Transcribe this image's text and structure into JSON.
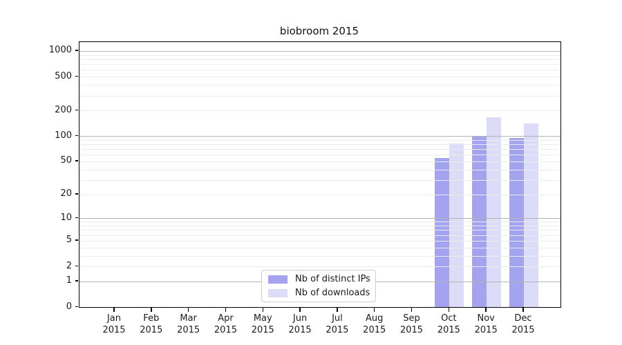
{
  "title": "biobroom 2015",
  "chart_data": {
    "type": "bar",
    "title": "biobroom 2015",
    "categories": [
      "Jan",
      "Feb",
      "Mar",
      "Apr",
      "May",
      "Jun",
      "Jul",
      "Aug",
      "Sep",
      "Oct",
      "Nov",
      "Dec"
    ],
    "category_year": "2015",
    "series": [
      {
        "name": "Nb of distinct IPs",
        "color": "#a3a3f0",
        "values": [
          0,
          0,
          0,
          0,
          0,
          0,
          0,
          0,
          0,
          55,
          101,
          95
        ]
      },
      {
        "name": "Nb of downloads",
        "color": "#dcdcf8",
        "values": [
          0,
          0,
          0,
          0,
          0,
          0,
          0,
          0,
          0,
          81,
          168,
          141
        ]
      }
    ],
    "yticks": [
      0,
      1,
      2,
      5,
      10,
      20,
      50,
      100,
      200,
      500,
      1000
    ],
    "scale": "log1p",
    "ylim": [
      0,
      1100
    ],
    "grid": true,
    "legend_position": "lower-center",
    "colors": {
      "major_grid": "#b3b3b3",
      "minor_grid": "#ebebeb",
      "axis": "#000000",
      "text": "#1a1a1a"
    }
  }
}
